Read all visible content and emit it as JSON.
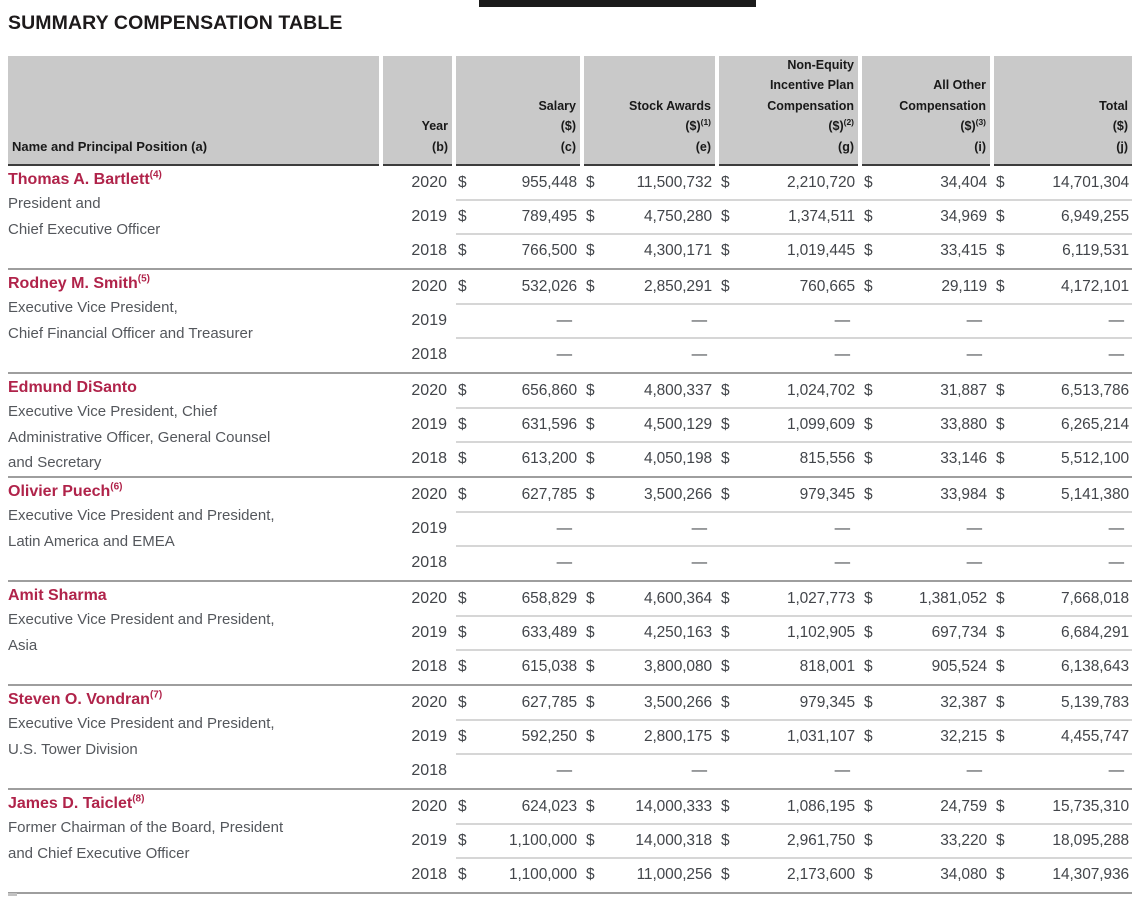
{
  "colors": {
    "accent-red": "#b0234a",
    "header-bg": "#c9c9c9",
    "title-text": "#1d1a1b",
    "body-text": "#54575c",
    "number-text": "#42454a",
    "line-light": "#d6d6d6",
    "line-dark": "#9e9e9e",
    "header-border": "#3c3c3c"
  },
  "page": {
    "title": "SUMMARY COMPENSATION TABLE"
  },
  "table": {
    "currency_symbol": "$",
    "empty_value": "—",
    "columns": [
      {
        "key": "name",
        "lines": [
          "Name and Principal Position (a)"
        ]
      },
      {
        "key": "year",
        "lines": [
          "Year",
          "(b)"
        ]
      },
      {
        "key": "salary",
        "lines": [
          "Salary",
          "($)",
          "(c)"
        ]
      },
      {
        "key": "stock-awards",
        "lines": [
          "Stock Awards"
        ],
        "unit": "($)",
        "sup": "(1)",
        "letter": "(e)"
      },
      {
        "key": "non-equity-incentive",
        "lines": [
          "Non-Equity",
          "Incentive Plan",
          "Compensation"
        ],
        "unit": "($)",
        "sup": "(2)",
        "letter": "(g)"
      },
      {
        "key": "all-other-compensation",
        "lines": [
          "All Other",
          "Compensation"
        ],
        "unit": "($)",
        "sup": "(3)",
        "letter": "(i)"
      },
      {
        "key": "total",
        "lines": [
          "Total",
          "($)",
          "(j)"
        ]
      }
    ],
    "groups": [
      {
        "name": "Thomas A. Bartlett",
        "sup": "(4)",
        "position": [
          "President and",
          "Chief Executive Officer"
        ],
        "rows": [
          {
            "year": "2020",
            "dollar": true,
            "values": [
              "955,448",
              "11,500,732",
              "2,210,720",
              "34,404",
              "14,701,304"
            ]
          },
          {
            "year": "2019",
            "dollar": true,
            "values": [
              "789,495",
              "4,750,280",
              "1,374,511",
              "34,969",
              "6,949,255"
            ]
          },
          {
            "year": "2018",
            "dollar": true,
            "values": [
              "766,500",
              "4,300,171",
              "1,019,445",
              "33,415",
              "6,119,531"
            ]
          }
        ]
      },
      {
        "name": "Rodney M. Smith",
        "sup": "(5)",
        "position": [
          "Executive Vice President,",
          "Chief Financial Officer and Treasurer"
        ],
        "rows": [
          {
            "year": "2020",
            "dollar": true,
            "values": [
              "532,026",
              "2,850,291",
              "760,665",
              "29,119",
              "4,172,101"
            ]
          },
          {
            "year": "2019",
            "dollar": false,
            "values": [
              "—",
              "—",
              "—",
              "—",
              "—"
            ]
          },
          {
            "year": "2018",
            "dollar": false,
            "values": [
              "—",
              "—",
              "—",
              "—",
              "—"
            ]
          }
        ]
      },
      {
        "name": "Edmund DiSanto",
        "sup": "",
        "position": [
          "Executive Vice President, Chief",
          "Administrative Officer, General Counsel",
          "and Secretary"
        ],
        "rows": [
          {
            "year": "2020",
            "dollar": true,
            "values": [
              "656,860",
              "4,800,337",
              "1,024,702",
              "31,887",
              "6,513,786"
            ]
          },
          {
            "year": "2019",
            "dollar": true,
            "values": [
              "631,596",
              "4,500,129",
              "1,099,609",
              "33,880",
              "6,265,214"
            ]
          },
          {
            "year": "2018",
            "dollar": true,
            "values": [
              "613,200",
              "4,050,198",
              "815,556",
              "33,146",
              "5,512,100"
            ]
          }
        ]
      },
      {
        "name": "Olivier Puech",
        "sup": "(6)",
        "position": [
          "Executive Vice President and President,",
          "Latin America and EMEA"
        ],
        "rows": [
          {
            "year": "2020",
            "dollar": true,
            "values": [
              "627,785",
              "3,500,266",
              "979,345",
              "33,984",
              "5,141,380"
            ]
          },
          {
            "year": "2019",
            "dollar": false,
            "values": [
              "—",
              "—",
              "—",
              "—",
              "—"
            ]
          },
          {
            "year": "2018",
            "dollar": false,
            "values": [
              "—",
              "—",
              "—",
              "—",
              "—"
            ]
          }
        ]
      },
      {
        "name": "Amit Sharma",
        "sup": "",
        "position": [
          "Executive Vice President and President,",
          "Asia"
        ],
        "rows": [
          {
            "year": "2020",
            "dollar": true,
            "values": [
              "658,829",
              "4,600,364",
              "1,027,773",
              "1,381,052",
              "7,668,018"
            ]
          },
          {
            "year": "2019",
            "dollar": true,
            "values": [
              "633,489",
              "4,250,163",
              "1,102,905",
              "697,734",
              "6,684,291"
            ]
          },
          {
            "year": "2018",
            "dollar": true,
            "values": [
              "615,038",
              "3,800,080",
              "818,001",
              "905,524",
              "6,138,643"
            ]
          }
        ]
      },
      {
        "name": "Steven O. Vondran",
        "sup": "(7)",
        "position": [
          "Executive Vice President and President,",
          "U.S. Tower Division"
        ],
        "rows": [
          {
            "year": "2020",
            "dollar": true,
            "values": [
              "627,785",
              "3,500,266",
              "979,345",
              "32,387",
              "5,139,783"
            ]
          },
          {
            "year": "2019",
            "dollar": true,
            "values": [
              "592,250",
              "2,800,175",
              "1,031,107",
              "32,215",
              "4,455,747"
            ]
          },
          {
            "year": "2018",
            "dollar": false,
            "values": [
              "—",
              "—",
              "—",
              "—",
              "—"
            ]
          }
        ]
      },
      {
        "name": "James D. Taiclet",
        "sup": "(8)",
        "position": [
          "Former Chairman of the Board, President",
          "and Chief Executive Officer"
        ],
        "rows": [
          {
            "year": "2020",
            "dollar": true,
            "values": [
              "624,023",
              "14,000,333",
              "1,086,195",
              "24,759",
              "15,735,310"
            ]
          },
          {
            "year": "2019",
            "dollar": true,
            "values": [
              "1,100,000",
              "14,000,318",
              "2,961,750",
              "33,220",
              "18,095,288"
            ]
          },
          {
            "year": "2018",
            "dollar": true,
            "values": [
              "1,100,000",
              "11,000,256",
              "2,173,600",
              "34,080",
              "14,307,936"
            ]
          }
        ]
      }
    ]
  }
}
